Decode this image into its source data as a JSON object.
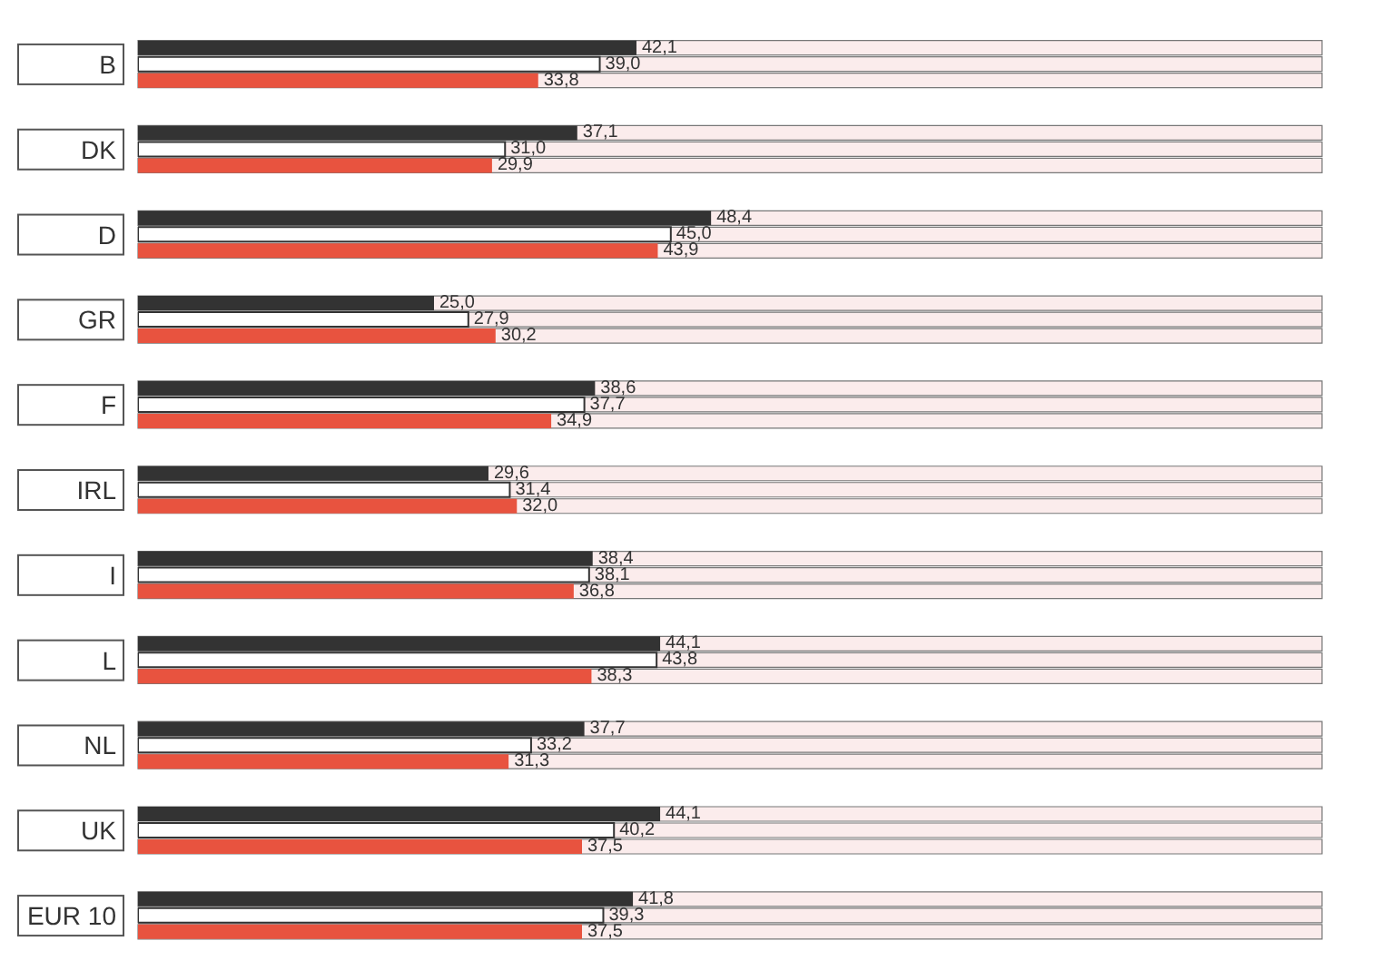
{
  "chart_data": {
    "type": "bar",
    "orientation": "horizontal",
    "categories": [
      "B",
      "DK",
      "D",
      "GR",
      "F",
      "IRL",
      "I",
      "L",
      "NL",
      "UK",
      "EUR 10"
    ],
    "series": [
      {
        "color": "#333333",
        "values": [
          42.1,
          37.1,
          48.4,
          25.0,
          38.6,
          29.6,
          38.4,
          44.1,
          37.7,
          44.1,
          41.8
        ],
        "value_labels": [
          "42,1",
          "37,1",
          "48,4",
          "25,0",
          "38,6",
          "29,6",
          "38,4",
          "44,1",
          "37,7",
          "44,1",
          "41,8"
        ]
      },
      {
        "color": "#ffffff",
        "values": [
          39.0,
          31.0,
          45.0,
          27.9,
          37.7,
          31.4,
          38.1,
          43.8,
          33.2,
          40.2,
          39.3
        ],
        "value_labels": [
          "39,0",
          "31,0",
          "45,0",
          "27,9",
          "37,7",
          "31,4",
          "38,1",
          "43,8",
          "33,2",
          "40,2",
          "39,3"
        ]
      },
      {
        "color": "#e8533f",
        "values": [
          33.8,
          29.9,
          43.9,
          30.2,
          34.9,
          32.0,
          36.8,
          38.3,
          31.3,
          37.5,
          37.5
        ],
        "value_labels": [
          "33,8",
          "29,9",
          "43,9",
          "30,2",
          "34,9",
          "32,0",
          "36,8",
          "38,3",
          "31,3",
          "37,5",
          "37,5"
        ]
      }
    ],
    "xlim": [
      0,
      100
    ],
    "tick_labels": "y"
  }
}
